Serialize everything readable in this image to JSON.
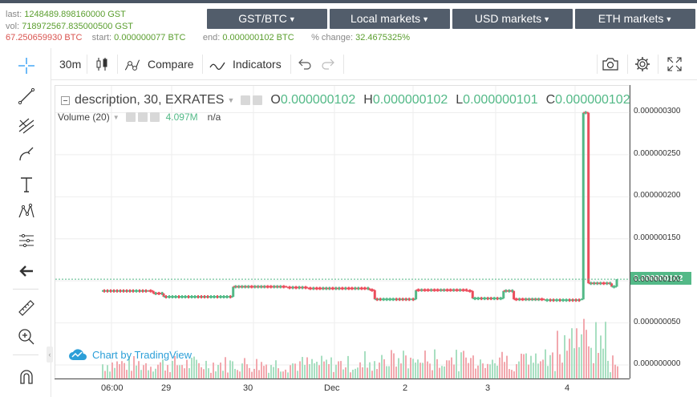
{
  "stats": {
    "last_label": "last:",
    "last_value": "1248489.898160000 GST",
    "vol_label": "vol:",
    "vol_value": "718972567.835000500 GST",
    "vol_btc": "67.250659930 BTC",
    "start_label": "start:",
    "start_value": "0.000000077 BTC",
    "end_label": "end:",
    "end_value": "0.000000102 BTC",
    "change_label": "% change:",
    "change_value": "32.4675325%"
  },
  "markets": [
    {
      "label": "GST/BTC"
    },
    {
      "label": "Local markets"
    },
    {
      "label": "USD markets"
    },
    {
      "label": "ETH markets"
    }
  ],
  "toolbar": {
    "interval": "30m",
    "compare_label": "Compare",
    "indicators_label": "Indicators"
  },
  "legend": {
    "title": "description, 30, EXRATES",
    "o_key": "O",
    "o_val": "0.000000102",
    "h_key": "H",
    "h_val": "0.000000102",
    "l_key": "L",
    "l_val": "0.000000101",
    "c_key": "C",
    "c_val": "0.000000102",
    "volume_label": "Volume (20)",
    "volume_value": "4.097M",
    "volume_na": "n/a"
  },
  "branding": {
    "chart_by": "Chart by TradingView"
  },
  "colors": {
    "up": "#53b987",
    "down": "#eb4d5c",
    "accent": "#2196f3",
    "market_bg": "#525d6b"
  },
  "chart_data": {
    "type": "candlestick",
    "price_axis_labels": [
      "0.000000300",
      "0.000000250",
      "0.000000200",
      "0.000000150",
      "0.000000100",
      "0.000000050",
      "0.000000000"
    ],
    "current_price_label": "0.000000102",
    "time_labels": [
      "06:00",
      "29",
      "30",
      "Dec",
      "2",
      "3",
      "4"
    ],
    "ylim": [
      0,
      3.1e-07
    ],
    "price_series": [
      {
        "t": 0.0,
        "p": 8.8e-08
      },
      {
        "t": 0.09,
        "p": 8.8e-08
      },
      {
        "t": 0.1,
        "p": 8.5e-08
      },
      {
        "t": 0.12,
        "p": 8.1e-08
      },
      {
        "t": 0.245,
        "p": 8.1e-08
      },
      {
        "t": 0.255,
        "p": 9.3e-08
      },
      {
        "t": 0.36,
        "p": 9.2e-08
      },
      {
        "t": 0.4,
        "p": 9.1e-08
      },
      {
        "t": 0.52,
        "p": 8.9e-08
      },
      {
        "t": 0.53,
        "p": 7.8e-08
      },
      {
        "t": 0.6,
        "p": 7.8e-08
      },
      {
        "t": 0.61,
        "p": 8.9e-08
      },
      {
        "t": 0.71,
        "p": 8.8e-08
      },
      {
        "t": 0.72,
        "p": 7.9e-08
      },
      {
        "t": 0.77,
        "p": 7.9e-08
      },
      {
        "t": 0.78,
        "p": 8.8e-08
      },
      {
        "t": 0.8,
        "p": 7.8e-08
      },
      {
        "t": 0.86,
        "p": 7.7e-08
      },
      {
        "t": 0.93,
        "p": 7.8e-08
      },
      {
        "t": 0.935,
        "p": 3e-07
      },
      {
        "t": 0.945,
        "p": 9.7e-08
      },
      {
        "t": 0.99,
        "p": 9.3e-08
      },
      {
        "t": 1.0,
        "p": 1.02e-07
      }
    ]
  }
}
